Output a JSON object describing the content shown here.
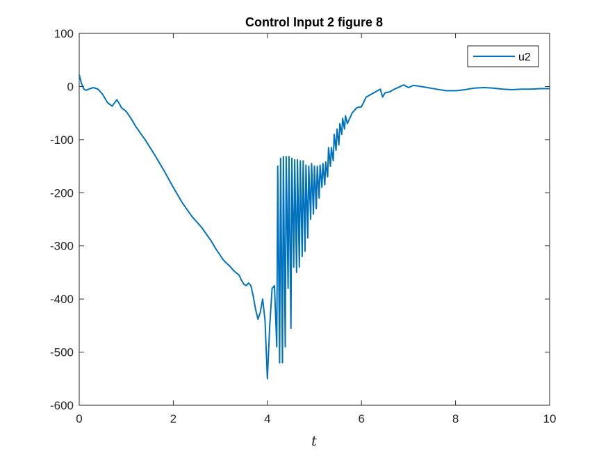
{
  "chart_data": {
    "type": "line",
    "title": "Control Input 2 figure 8",
    "xlabel": "t",
    "ylabel": "",
    "xlim": [
      0,
      10
    ],
    "ylim": [
      -600,
      100
    ],
    "xticks": [
      0,
      2,
      4,
      6,
      8,
      10
    ],
    "yticks": [
      100,
      0,
      -100,
      -200,
      -300,
      -400,
      -500,
      -600
    ],
    "grid": false,
    "legend": "top-right",
    "color": "#0072BD",
    "series": [
      {
        "name": "u2",
        "x": [
          0,
          0.05,
          0.1,
          0.15,
          0.2,
          0.3,
          0.4,
          0.5,
          0.6,
          0.7,
          0.8,
          0.85,
          0.9,
          1.0,
          1.1,
          1.2,
          1.4,
          1.6,
          1.8,
          2.0,
          2.2,
          2.4,
          2.6,
          2.8,
          2.9,
          3.0,
          3.05,
          3.1,
          3.2,
          3.3,
          3.4,
          3.45,
          3.5,
          3.55,
          3.6,
          3.65,
          3.7,
          3.75,
          3.8,
          3.85,
          3.9,
          3.95,
          4.0,
          4.05,
          4.1,
          4.15,
          4.2,
          4.22,
          4.26,
          4.28,
          4.32,
          4.34,
          4.38,
          4.4,
          4.44,
          4.46,
          4.5,
          4.52,
          4.56,
          4.58,
          4.62,
          4.64,
          4.68,
          4.7,
          4.74,
          4.76,
          4.8,
          4.82,
          4.86,
          4.88,
          4.92,
          4.94,
          4.98,
          5.0,
          5.04,
          5.06,
          5.1,
          5.12,
          5.16,
          5.18,
          5.22,
          5.24,
          5.28,
          5.3,
          5.34,
          5.36,
          5.4,
          5.42,
          5.46,
          5.48,
          5.52,
          5.54,
          5.58,
          5.6,
          5.64,
          5.66,
          5.7,
          5.75,
          5.8,
          5.85,
          5.9,
          6.0,
          6.1,
          6.2,
          6.3,
          6.4,
          6.45,
          6.5,
          6.6,
          6.7,
          6.8,
          6.9,
          7.0,
          7.1,
          7.2,
          7.4,
          7.6,
          7.8,
          8.0,
          8.2,
          8.4,
          8.6,
          8.8,
          9.0,
          9.2,
          9.4,
          9.6,
          9.8,
          10.0
        ],
        "y": [
          22,
          5,
          -5,
          -7,
          -5,
          -2,
          -5,
          -15,
          -30,
          -37,
          -25,
          -32,
          -40,
          -47,
          -60,
          -75,
          -100,
          -128,
          -158,
          -190,
          -220,
          -245,
          -265,
          -290,
          -305,
          -318,
          -325,
          -330,
          -338,
          -348,
          -355,
          -365,
          -372,
          -375,
          -370,
          -375,
          -395,
          -420,
          -438,
          -425,
          -400,
          -440,
          -550,
          -450,
          -380,
          -375,
          -490,
          -150,
          -520,
          -135,
          -520,
          -132,
          -490,
          -132,
          -380,
          -132,
          -455,
          -135,
          -340,
          -138,
          -350,
          -138,
          -340,
          -140,
          -320,
          -140,
          -310,
          -148,
          -285,
          -150,
          -250,
          -145,
          -240,
          -150,
          -230,
          -150,
          -210,
          -148,
          -190,
          -145,
          -185,
          -142,
          -170,
          -115,
          -150,
          -115,
          -140,
          -90,
          -120,
          -80,
          -110,
          -70,
          -90,
          -60,
          -80,
          -55,
          -70,
          -60,
          -50,
          -45,
          -40,
          -38,
          -20,
          -15,
          -10,
          -5,
          -20,
          -12,
          -10,
          -5,
          -1,
          3,
          -2,
          2,
          1,
          -2,
          -5,
          -8,
          -8,
          -6,
          -3,
          -2,
          -3,
          -5,
          -6,
          -5,
          -5,
          -4,
          -4
        ]
      }
    ]
  }
}
